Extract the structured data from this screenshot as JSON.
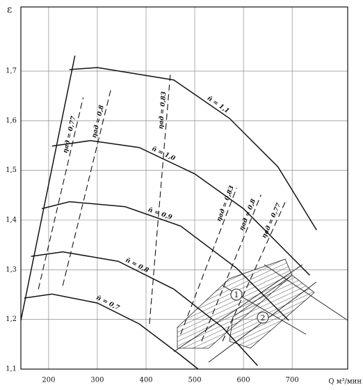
{
  "chart_data": {
    "type": "line",
    "y_label": "ε",
    "x_label": "Q м³/мин",
    "xlim": [
      143,
      814
    ],
    "ylim": [
      1.1,
      1.829
    ],
    "xticks": [
      200,
      300,
      400,
      500,
      600,
      700
    ],
    "yticks": [
      {
        "value": 1.1,
        "label": "1,1"
      },
      {
        "value": 1.2,
        "label": "1,2"
      },
      {
        "value": 1.3,
        "label": "1,3"
      },
      {
        "value": 1.4,
        "label": "1,4"
      },
      {
        "value": 1.5,
        "label": "1,5"
      },
      {
        "value": 1.6,
        "label": "1,6"
      },
      {
        "value": 1.7,
        "label": "1,7"
      }
    ],
    "grid": true,
    "series": [
      {
        "name": "n̄ = 1,1",
        "color": "#111111",
        "dash": false,
        "x": [
          243,
          300,
          457,
          571,
          671,
          750
        ],
        "values": [
          1.703,
          1.707,
          1.682,
          1.605,
          1.507,
          1.38
        ]
      },
      {
        "name": "n̄ = 1,0",
        "color": "#111111",
        "dash": false,
        "x": [
          207,
          286,
          386,
          500,
          600,
          736
        ],
        "values": [
          1.549,
          1.56,
          1.546,
          1.493,
          1.423,
          1.289
        ]
      },
      {
        "name": "n̄ = 0,9",
        "color": "#111111",
        "dash": false,
        "x": [
          186,
          243,
          357,
          471,
          586,
          693
        ],
        "values": [
          1.423,
          1.437,
          1.427,
          1.388,
          1.303,
          1.198
        ]
      },
      {
        "name": "n̄ = 0,8",
        "color": "#111111",
        "dash": false,
        "x": [
          164,
          229,
          343,
          457,
          557,
          629
        ],
        "values": [
          1.327,
          1.336,
          1.317,
          1.261,
          1.184,
          1.107
        ]
      },
      {
        "name": "n̄ = 0,7",
        "color": "#111111",
        "dash": false,
        "x": [
          150,
          207,
          300,
          386,
          471,
          507
        ],
        "values": [
          1.243,
          1.251,
          1.233,
          1.191,
          1.128,
          1.1
        ]
      },
      {
        "color": "#111111",
        "dash": false,
        "x": [
          143,
          254
        ],
        "values": [
          1.198,
          1.731
        ]
      },
      {
        "name": "ηад = 0,77",
        "color": "#111111",
        "dash": true,
        "x": [
          179,
          271
        ],
        "values": [
          1.261,
          1.647
        ]
      },
      {
        "name": "ηад = 0,8",
        "color": "#111111",
        "dash": true,
        "x": [
          229,
          329
        ],
        "values": [
          1.268,
          1.668
        ]
      },
      {
        "name": "ηад = 0,83",
        "color": "#111111",
        "dash": true,
        "x": [
          407,
          450
        ],
        "values": [
          1.191,
          1.696
        ]
      },
      {
        "name": "ηад = 0,83",
        "color": "#111111",
        "dash": true,
        "x": [
          471,
          586
        ],
        "values": [
          1.17,
          1.465
        ]
      },
      {
        "name": "ηад = 0,8",
        "color": "#111111",
        "dash": true,
        "x": [
          514,
          636
        ],
        "values": [
          1.156,
          1.451
        ]
      },
      {
        "name": "ηад = 0,77",
        "color": "#111111",
        "dash": true,
        "x": [
          557,
          686
        ],
        "values": [
          1.156,
          1.437
        ]
      }
    ],
    "annotations": [
      "1",
      "2"
    ]
  }
}
